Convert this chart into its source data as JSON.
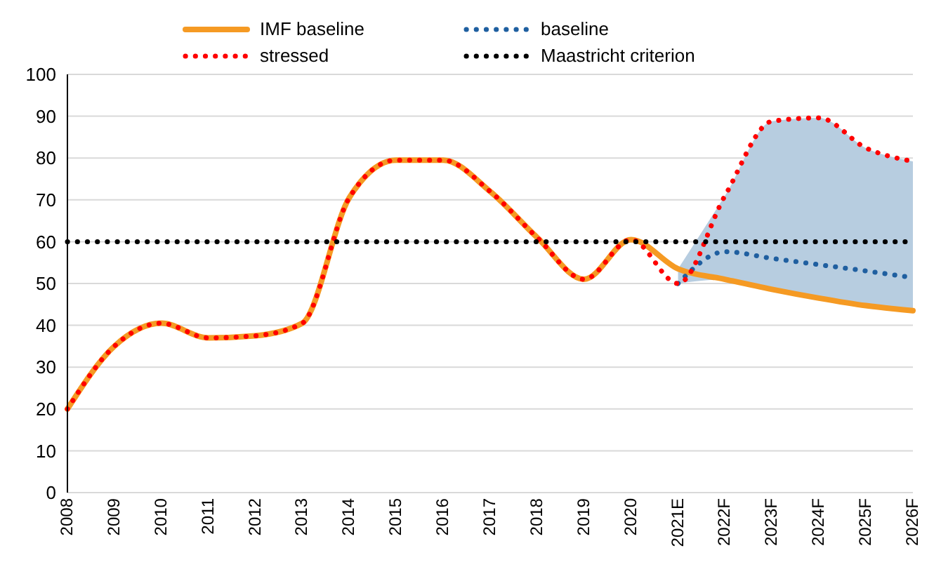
{
  "chart_data": {
    "type": "line",
    "categories": [
      "2008",
      "2009",
      "2010",
      "2011",
      "2012",
      "2013",
      "2014",
      "2015",
      "2016",
      "2017",
      "2018",
      "2019",
      "2020",
      "2021E",
      "2022F",
      "2023F",
      "2024F",
      "2025F",
      "2026F"
    ],
    "series": [
      {
        "name": "IMF baseline",
        "color": "#f59a23",
        "line_style": "solid",
        "values": [
          20,
          35,
          40.5,
          37,
          37.5,
          40.5,
          70.5,
          79.5,
          79.5,
          72,
          61,
          51,
          60.5,
          53.5,
          51,
          48.6,
          46.5,
          44.7,
          43.5
        ]
      },
      {
        "name": "baseline",
        "color": "#1f5fa0",
        "line_style": "dotted",
        "values": [
          null,
          null,
          null,
          null,
          null,
          null,
          null,
          null,
          null,
          null,
          null,
          null,
          null,
          50,
          57.6,
          56,
          54.5,
          53,
          51.4
        ]
      },
      {
        "name": "stressed",
        "color": "#ff0000",
        "line_style": "dotted",
        "values": [
          20,
          35,
          40.5,
          37,
          37.5,
          40.5,
          70.5,
          79.5,
          79.5,
          72,
          61,
          51,
          60.5,
          50,
          71,
          88.8,
          89.6,
          82.4,
          79.2
        ],
        "lower": [
          null,
          null,
          null,
          null,
          null,
          null,
          null,
          null,
          null,
          null,
          null,
          null,
          null,
          50,
          51,
          48.6,
          46.5,
          44.7,
          43.5
        ],
        "upper": [
          null,
          null,
          null,
          null,
          null,
          null,
          null,
          null,
          null,
          null,
          null,
          null,
          null,
          53.5,
          71,
          88.8,
          89.6,
          82.4,
          79.2
        ]
      },
      {
        "name": "Maastricht criterion",
        "color": "#000000",
        "line_style": "dotted",
        "values": [
          60,
          60,
          60,
          60,
          60,
          60,
          60,
          60,
          60,
          60,
          60,
          60,
          60,
          60,
          60,
          60,
          60,
          60,
          60
        ]
      }
    ],
    "ylim": [
      0,
      100
    ],
    "yticks": [
      0,
      10,
      20,
      30,
      40,
      50,
      60,
      70,
      80,
      90,
      100
    ],
    "grid": "y",
    "legend": "top",
    "marker": "none"
  }
}
